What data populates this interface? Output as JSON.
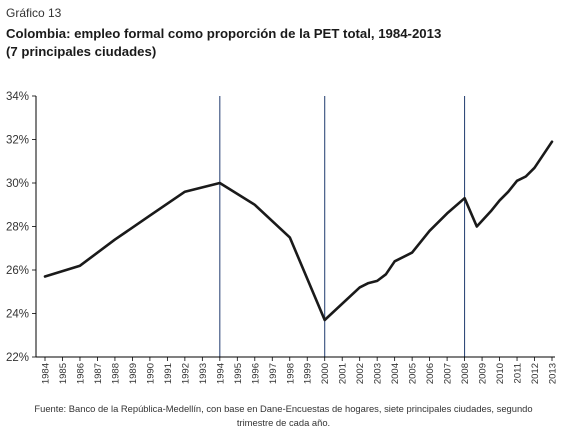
{
  "figure_label": "Gráfico 13",
  "title_line1": "Colombia: empleo formal como proporción de la PET total, 1984-2013",
  "title_line2": "(7 principales ciudades)",
  "source_line1": "Fuente: Banco de la República-Medellín, con base en Dane-Encuestas de hogares, siete principales ciudades, segundo",
  "source_line2": "trimestre de cada año.",
  "colors": {
    "line": "#1a1a1a",
    "vline": "#1f3a6e",
    "axis": "#000000",
    "text": "#333333"
  },
  "chart_data": {
    "type": "line",
    "title": "Colombia: empleo formal como proporción de la PET total, 1984-2013",
    "subtitle": "(7 principales ciudades)",
    "xlabel": "",
    "ylabel": "",
    "ylim": [
      22,
      34
    ],
    "y_ticks": [
      "22%",
      "24%",
      "26%",
      "28%",
      "30%",
      "32%",
      "34%"
    ],
    "x_ticks": [
      "1984",
      "1985",
      "1986",
      "1987",
      "1988",
      "1989",
      "1990",
      "1991",
      "1992",
      "1993",
      "1994",
      "1995",
      "1996",
      "1997",
      "1998",
      "1999",
      "2000",
      "2001",
      "2002",
      "2003",
      "2004",
      "2005",
      "2006",
      "2007",
      "2008",
      "2009",
      "2010",
      "2011",
      "2012",
      "2013"
    ],
    "grid": false,
    "vertical_markers": [
      1994,
      2000,
      2008
    ],
    "series": [
      {
        "x": [
          1984,
          1986,
          1988,
          1990,
          1992,
          1994,
          1996,
          1998,
          2000,
          2002,
          2002.5,
          2003,
          2003.5,
          2004,
          2005,
          2006,
          2007,
          2008,
          2008.7,
          2009.5,
          2010,
          2010.5,
          2011,
          2011.5,
          2012,
          2012.5,
          2013
        ],
        "values": [
          25.7,
          26.2,
          27.4,
          28.5,
          29.6,
          30.0,
          29.0,
          27.5,
          23.7,
          25.2,
          25.4,
          25.5,
          25.8,
          26.4,
          26.8,
          27.8,
          28.6,
          29.3,
          28.0,
          28.7,
          29.2,
          29.6,
          30.1,
          30.3,
          30.7,
          31.3,
          31.9
        ]
      }
    ]
  }
}
